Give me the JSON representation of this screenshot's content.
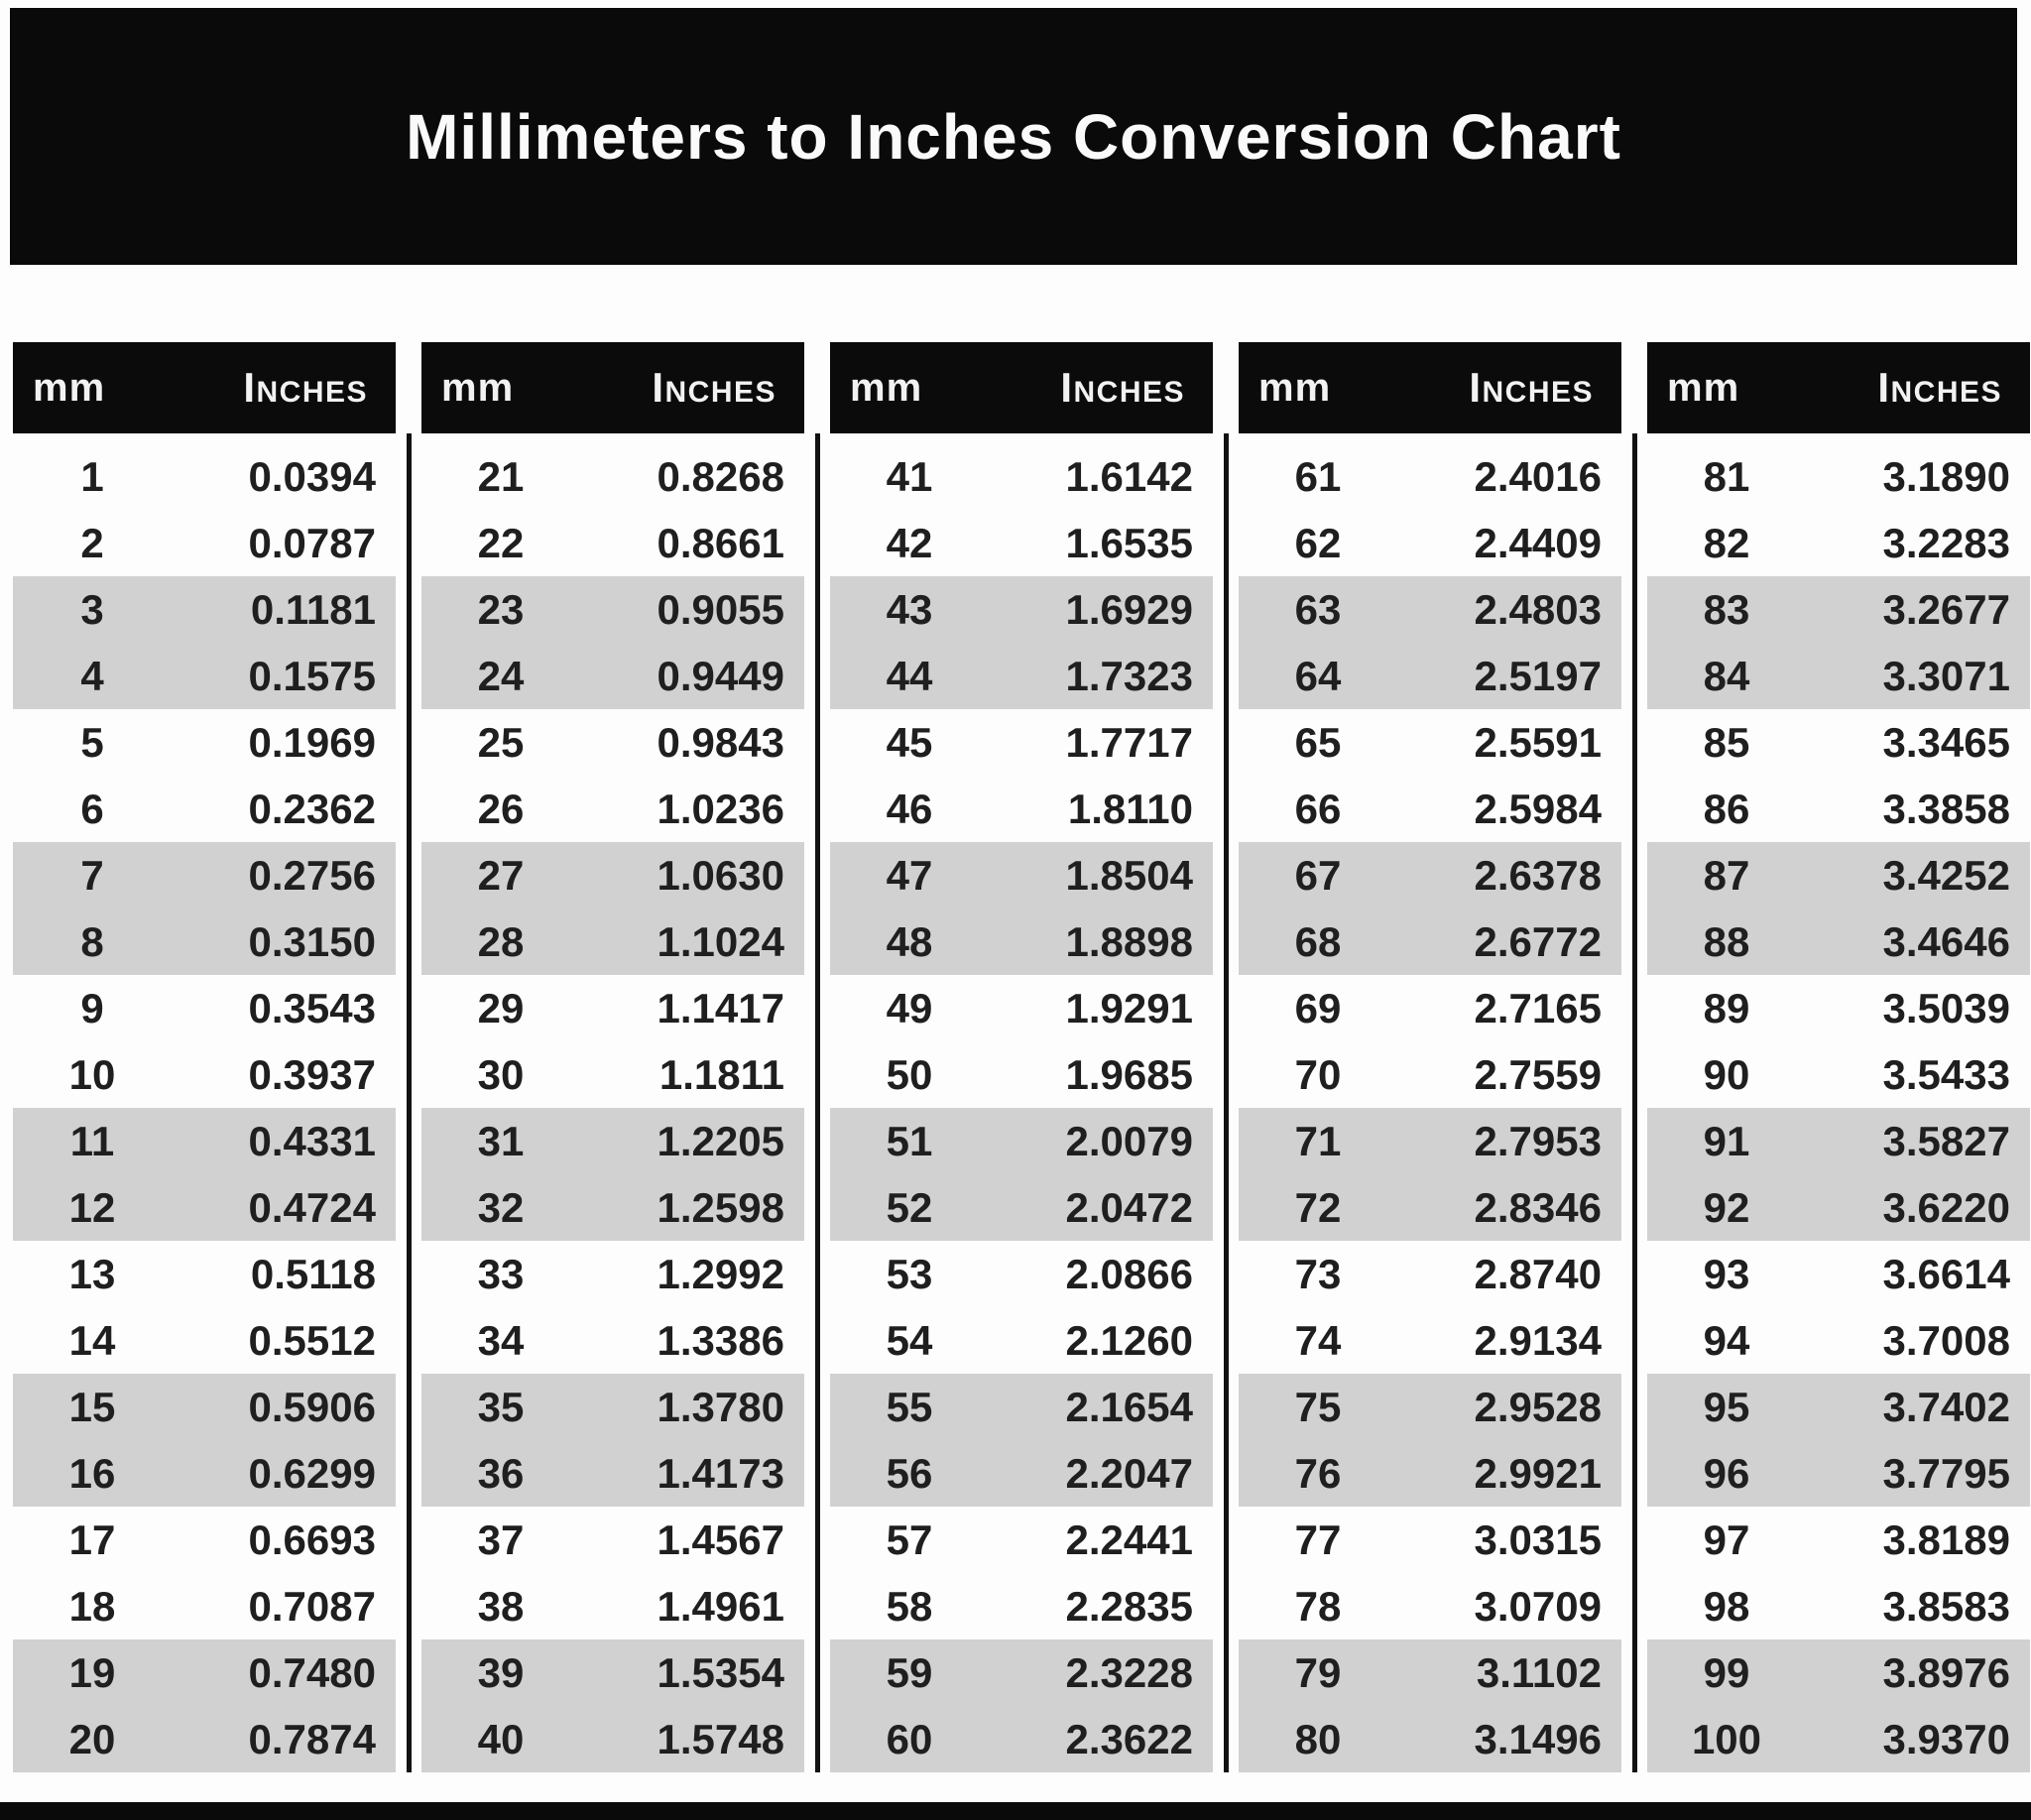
{
  "title": "Millimeters to Inches Conversion Chart",
  "column_headers": {
    "mm": "mm",
    "inches": "Inches"
  },
  "tables": [
    {
      "rows": [
        {
          "mm": "1",
          "in": "0.0394"
        },
        {
          "mm": "2",
          "in": "0.0787"
        },
        {
          "mm": "3",
          "in": "0.1181"
        },
        {
          "mm": "4",
          "in": "0.1575"
        },
        {
          "mm": "5",
          "in": "0.1969"
        },
        {
          "mm": "6",
          "in": "0.2362"
        },
        {
          "mm": "7",
          "in": "0.2756"
        },
        {
          "mm": "8",
          "in": "0.3150"
        },
        {
          "mm": "9",
          "in": "0.3543"
        },
        {
          "mm": "10",
          "in": "0.3937"
        },
        {
          "mm": "11",
          "in": "0.4331"
        },
        {
          "mm": "12",
          "in": "0.4724"
        },
        {
          "mm": "13",
          "in": "0.5118"
        },
        {
          "mm": "14",
          "in": "0.5512"
        },
        {
          "mm": "15",
          "in": "0.5906"
        },
        {
          "mm": "16",
          "in": "0.6299"
        },
        {
          "mm": "17",
          "in": "0.6693"
        },
        {
          "mm": "18",
          "in": "0.7087"
        },
        {
          "mm": "19",
          "in": "0.7480"
        },
        {
          "mm": "20",
          "in": "0.7874"
        }
      ]
    },
    {
      "rows": [
        {
          "mm": "21",
          "in": "0.8268"
        },
        {
          "mm": "22",
          "in": "0.8661"
        },
        {
          "mm": "23",
          "in": "0.9055"
        },
        {
          "mm": "24",
          "in": "0.9449"
        },
        {
          "mm": "25",
          "in": "0.9843"
        },
        {
          "mm": "26",
          "in": "1.0236"
        },
        {
          "mm": "27",
          "in": "1.0630"
        },
        {
          "mm": "28",
          "in": "1.1024"
        },
        {
          "mm": "29",
          "in": "1.1417"
        },
        {
          "mm": "30",
          "in": "1.1811"
        },
        {
          "mm": "31",
          "in": "1.2205"
        },
        {
          "mm": "32",
          "in": "1.2598"
        },
        {
          "mm": "33",
          "in": "1.2992"
        },
        {
          "mm": "34",
          "in": "1.3386"
        },
        {
          "mm": "35",
          "in": "1.3780"
        },
        {
          "mm": "36",
          "in": "1.4173"
        },
        {
          "mm": "37",
          "in": "1.4567"
        },
        {
          "mm": "38",
          "in": "1.4961"
        },
        {
          "mm": "39",
          "in": "1.5354"
        },
        {
          "mm": "40",
          "in": "1.5748"
        }
      ]
    },
    {
      "rows": [
        {
          "mm": "41",
          "in": "1.6142"
        },
        {
          "mm": "42",
          "in": "1.6535"
        },
        {
          "mm": "43",
          "in": "1.6929"
        },
        {
          "mm": "44",
          "in": "1.7323"
        },
        {
          "mm": "45",
          "in": "1.7717"
        },
        {
          "mm": "46",
          "in": "1.8110"
        },
        {
          "mm": "47",
          "in": "1.8504"
        },
        {
          "mm": "48",
          "in": "1.8898"
        },
        {
          "mm": "49",
          "in": "1.9291"
        },
        {
          "mm": "50",
          "in": "1.9685"
        },
        {
          "mm": "51",
          "in": "2.0079"
        },
        {
          "mm": "52",
          "in": "2.0472"
        },
        {
          "mm": "53",
          "in": "2.0866"
        },
        {
          "mm": "54",
          "in": "2.1260"
        },
        {
          "mm": "55",
          "in": "2.1654"
        },
        {
          "mm": "56",
          "in": "2.2047"
        },
        {
          "mm": "57",
          "in": "2.2441"
        },
        {
          "mm": "58",
          "in": "2.2835"
        },
        {
          "mm": "59",
          "in": "2.3228"
        },
        {
          "mm": "60",
          "in": "2.3622"
        }
      ]
    },
    {
      "rows": [
        {
          "mm": "61",
          "in": "2.4016"
        },
        {
          "mm": "62",
          "in": "2.4409"
        },
        {
          "mm": "63",
          "in": "2.4803"
        },
        {
          "mm": "64",
          "in": "2.5197"
        },
        {
          "mm": "65",
          "in": "2.5591"
        },
        {
          "mm": "66",
          "in": "2.5984"
        },
        {
          "mm": "67",
          "in": "2.6378"
        },
        {
          "mm": "68",
          "in": "2.6772"
        },
        {
          "mm": "69",
          "in": "2.7165"
        },
        {
          "mm": "70",
          "in": "2.7559"
        },
        {
          "mm": "71",
          "in": "2.7953"
        },
        {
          "mm": "72",
          "in": "2.8346"
        },
        {
          "mm": "73",
          "in": "2.8740"
        },
        {
          "mm": "74",
          "in": "2.9134"
        },
        {
          "mm": "75",
          "in": "2.9528"
        },
        {
          "mm": "76",
          "in": "2.9921"
        },
        {
          "mm": "77",
          "in": "3.0315"
        },
        {
          "mm": "78",
          "in": "3.0709"
        },
        {
          "mm": "79",
          "in": "3.1102"
        },
        {
          "mm": "80",
          "in": "3.1496"
        }
      ]
    },
    {
      "rows": [
        {
          "mm": "81",
          "in": "3.1890"
        },
        {
          "mm": "82",
          "in": "3.2283"
        },
        {
          "mm": "83",
          "in": "3.2677"
        },
        {
          "mm": "84",
          "in": "3.3071"
        },
        {
          "mm": "85",
          "in": "3.3465"
        },
        {
          "mm": "86",
          "in": "3.3858"
        },
        {
          "mm": "87",
          "in": "3.4252"
        },
        {
          "mm": "88",
          "in": "3.4646"
        },
        {
          "mm": "89",
          "in": "3.5039"
        },
        {
          "mm": "90",
          "in": "3.5433"
        },
        {
          "mm": "91",
          "in": "3.5827"
        },
        {
          "mm": "92",
          "in": "3.6220"
        },
        {
          "mm": "93",
          "in": "3.6614"
        },
        {
          "mm": "94",
          "in": "3.7008"
        },
        {
          "mm": "95",
          "in": "3.7402"
        },
        {
          "mm": "96",
          "in": "3.7795"
        },
        {
          "mm": "97",
          "in": "3.8189"
        },
        {
          "mm": "98",
          "in": "3.8583"
        },
        {
          "mm": "99",
          "in": "3.8976"
        },
        {
          "mm": "100",
          "in": "3.9370"
        }
      ]
    }
  ],
  "colors": {
    "banner": "#0a0a0a",
    "stripe": "#d1d1d1",
    "text": "#1f1f1f"
  }
}
